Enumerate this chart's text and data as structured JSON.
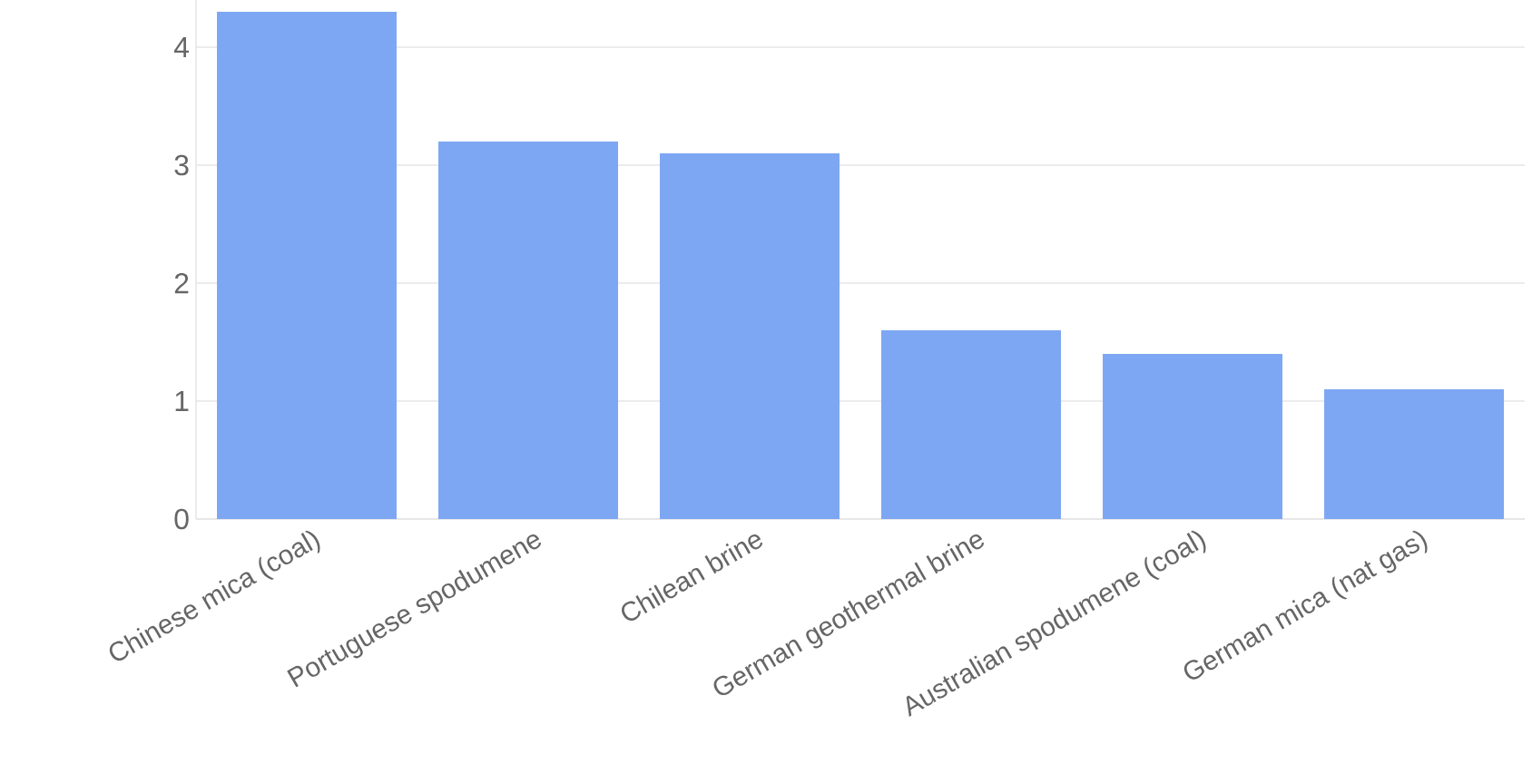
{
  "chart_data": {
    "type": "bar",
    "categories": [
      "Chinese mica (coal)",
      "Portuguese spodumene",
      "Chilean brine",
      "German geothermal brine",
      "Australian spodumene (coal)",
      "German mica (nat gas)"
    ],
    "values": [
      4.3,
      3.2,
      3.1,
      1.6,
      1.4,
      1.1
    ],
    "color": "#7ea7f3",
    "ylim": [
      0,
      4.4
    ],
    "yticks": [
      0,
      1,
      2,
      3,
      4
    ],
    "grid": "y"
  }
}
